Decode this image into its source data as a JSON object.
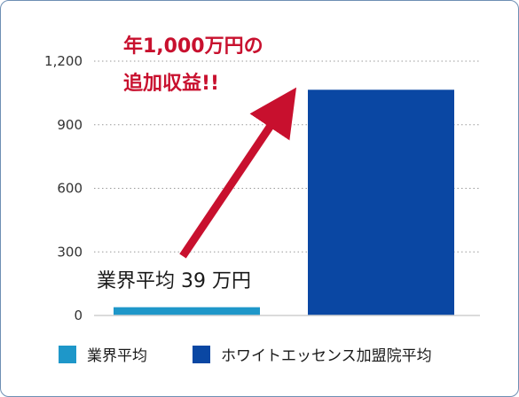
{
  "chart_data": {
    "type": "bar",
    "categories": [
      "業界平均",
      "ホワイトエッセンス加盟院平均"
    ],
    "values": [
      39,
      1065
    ],
    "ylim": [
      0,
      1200
    ],
    "yticks": [
      0,
      300,
      600,
      900,
      1200
    ],
    "ytick_labels": [
      "0",
      "300",
      "600",
      "900",
      "1,200"
    ],
    "grid": "horizontal-dotted",
    "legend_position": "bottom",
    "colors": [
      "#1e97c9",
      "#0a47a3"
    ],
    "data_label": "業界平均 39 万円",
    "annotation_line1": "年1,000万円の",
    "annotation_line2": "追加収益!!",
    "annotation_color": "#c8102e"
  }
}
